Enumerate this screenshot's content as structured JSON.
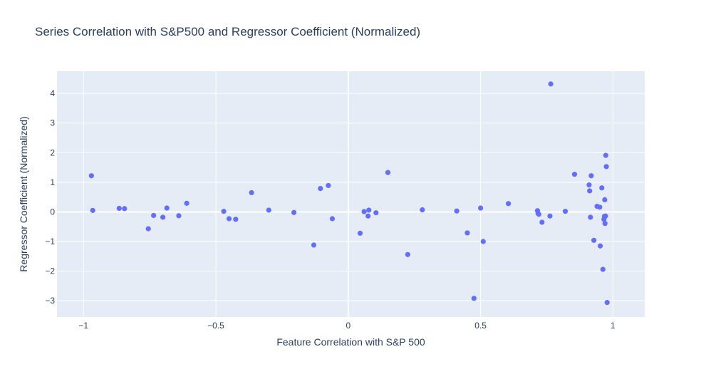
{
  "chart_data": {
    "type": "scatter",
    "title": "Series Correlation with S&P500 and Regressor Coefficient (Normalized)",
    "xlabel": "Feature Correlation with S&P 500",
    "ylabel": "Regressor Coefficient (Normalized)",
    "xlim": [
      -1.1,
      1.12
    ],
    "ylim": [
      -3.55,
      4.75
    ],
    "xticks": [
      -1,
      -0.5,
      0,
      0.5,
      1
    ],
    "xtick_labels": [
      "−1",
      "−0.5",
      "0",
      "0.5",
      "1"
    ],
    "yticks": [
      -3,
      -2,
      -1,
      0,
      1,
      2,
      3,
      4
    ],
    "ytick_labels": [
      "−3",
      "−2",
      "−1",
      "0",
      "1",
      "2",
      "3",
      "4"
    ],
    "grid": true,
    "legend": "none",
    "colors": {
      "marker": "#636efa",
      "plot_bg": "#e5ecf6",
      "grid": "#ffffff",
      "text": "#2a3f5f"
    },
    "x": [
      -0.97,
      -0.965,
      -0.865,
      -0.845,
      -0.755,
      -0.735,
      -0.7,
      -0.685,
      -0.64,
      -0.61,
      -0.47,
      -0.45,
      -0.425,
      -0.365,
      -0.3,
      -0.205,
      -0.13,
      -0.105,
      -0.075,
      -0.06,
      0.045,
      0.06,
      0.075,
      0.078,
      0.105,
      0.15,
      0.225,
      0.28,
      0.41,
      0.45,
      0.475,
      0.5,
      0.51,
      0.605,
      0.715,
      0.717,
      0.72,
      0.732,
      0.765,
      0.762,
      0.82,
      0.855,
      0.91,
      0.912,
      0.915,
      0.918,
      0.928,
      0.94,
      0.95,
      0.952,
      0.958,
      0.962,
      0.966,
      0.968,
      0.969,
      0.97,
      0.972,
      0.973,
      0.975,
      0.978
    ],
    "y": [
      1.22,
      0.05,
      0.12,
      0.11,
      -0.57,
      -0.12,
      -0.18,
      0.13,
      -0.13,
      0.29,
      0.02,
      -0.23,
      -0.25,
      0.65,
      0.06,
      -0.02,
      -1.12,
      0.79,
      0.89,
      -0.23,
      -0.72,
      0.01,
      -0.14,
      0.06,
      -0.03,
      1.33,
      -1.44,
      0.07,
      0.03,
      -0.71,
      -2.92,
      0.13,
      -1.0,
      0.28,
      0.04,
      -0.05,
      -0.08,
      -0.35,
      4.32,
      -0.14,
      0.02,
      1.27,
      0.91,
      0.71,
      -0.18,
      1.22,
      -0.96,
      0.19,
      0.16,
      -1.15,
      0.81,
      -1.94,
      -0.25,
      -0.15,
      0.41,
      -0.39,
      -0.14,
      1.91,
      1.53,
      -3.06
    ]
  }
}
